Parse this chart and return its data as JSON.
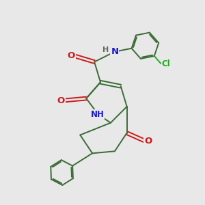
{
  "bg_color": "#e8e8e8",
  "bond_color": "#3a6b35",
  "atom_colors": {
    "N": "#1a1acc",
    "O": "#cc1a1a",
    "Cl": "#22aa22",
    "H": "#666666"
  },
  "line_width": 1.4,
  "font_size": 8.5,
  "figsize": [
    3.0,
    3.0
  ],
  "dpi": 100
}
